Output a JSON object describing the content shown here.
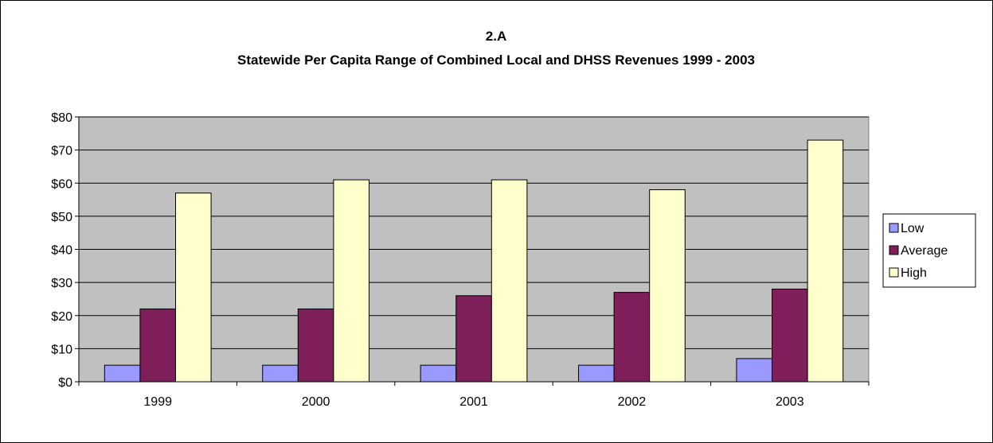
{
  "chart_data": {
    "type": "bar",
    "title": "2.A",
    "subtitle": "Statewide Per Capita Range of Combined Local and DHSS Revenues 1999 - 2003",
    "xlabel": "",
    "ylabel": "",
    "categories": [
      "1999",
      "2000",
      "2001",
      "2002",
      "2003"
    ],
    "series": [
      {
        "name": "Low",
        "values": [
          5,
          5,
          5,
          5,
          7
        ],
        "color": "#9999FF"
      },
      {
        "name": "Average",
        "values": [
          22,
          22,
          26,
          27,
          28
        ],
        "color": "#7F1F5A"
      },
      {
        "name": "High",
        "values": [
          57,
          61,
          61,
          58,
          73
        ],
        "color": "#FFFFCC"
      }
    ],
    "ylim": [
      0,
      80
    ],
    "yticks": [
      0,
      10,
      20,
      30,
      40,
      50,
      60,
      70,
      80
    ],
    "ytick_labels": [
      "$0",
      "$10",
      "$20",
      "$30",
      "$40",
      "$50",
      "$60",
      "$70",
      "$80"
    ],
    "grid": true,
    "plot_background": "#C0C0C0",
    "legend_position": "right"
  }
}
